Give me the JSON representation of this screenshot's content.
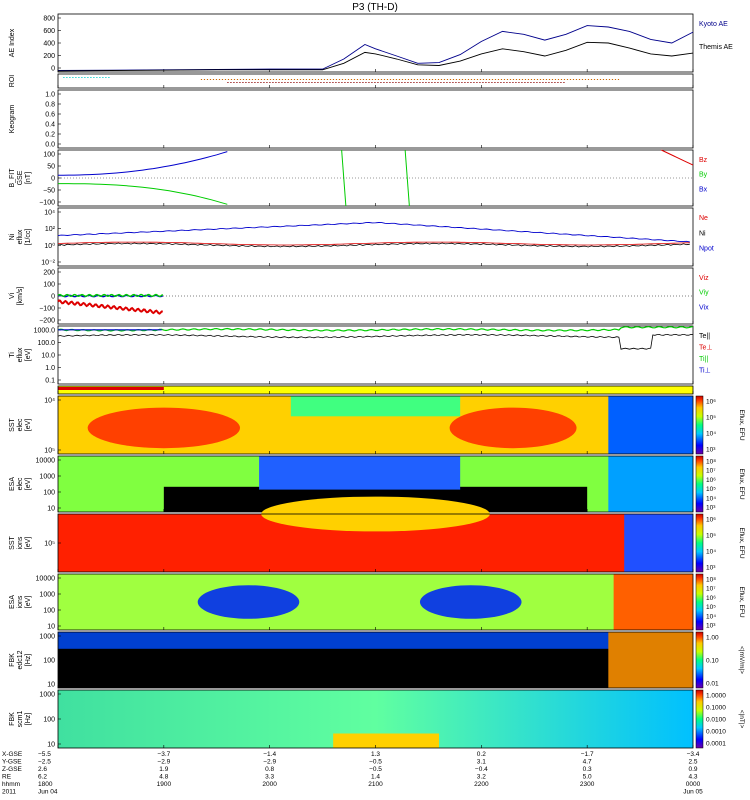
{
  "figure": {
    "title": "P3 (TH-D)"
  },
  "colors": {
    "kyoto": "#00008b",
    "themis": "#000000",
    "red": "#dd0000",
    "green": "#00cc00",
    "blue": "#0000cc",
    "cyan": "#00cccc",
    "orange": "#cc6600"
  },
  "panels": [
    {
      "id": "ae",
      "ylabel": [
        "AE Index"
      ],
      "ticks": [
        "800",
        "600",
        "400",
        "200",
        "0"
      ],
      "legend": [
        {
          "text": "Kyoto AE",
          "color": "#00008b"
        },
        {
          "text": "Themis AE",
          "color": "#000000"
        }
      ]
    },
    {
      "id": "roi",
      "ylabel": [
        "ROI"
      ],
      "ticks": [],
      "legend": []
    },
    {
      "id": "keo",
      "ylabel": [
        "Keogram"
      ],
      "ticks": [
        "1.0",
        "0.8",
        "0.6",
        "0.4",
        "0.2",
        "0.0"
      ],
      "legend": []
    },
    {
      "id": "bfit",
      "ylabel": [
        "B_FIT",
        "GSE",
        "[nT]"
      ],
      "ticks": [
        "100",
        "50",
        "0",
        "−50",
        "−100"
      ],
      "legend": [
        {
          "text": "Bz",
          "color": "#dd0000"
        },
        {
          "text": "By",
          "color": "#00cc00"
        },
        {
          "text": "Bx",
          "color": "#0000cc"
        }
      ]
    },
    {
      "id": "ni",
      "ylabel": [
        "Ni",
        "eflux",
        "[1/cc]"
      ],
      "ticks": [
        "10⁴",
        "10²",
        "10⁰",
        "10⁻²"
      ],
      "legend": [
        {
          "text": "Ne",
          "color": "#dd0000"
        },
        {
          "text": "Ni",
          "color": "#000000"
        },
        {
          "text": "Npot",
          "color": "#0000cc"
        }
      ]
    },
    {
      "id": "vi",
      "ylabel": [
        "Vi",
        "[km/s]"
      ],
      "ticks": [
        "200",
        "100",
        "0",
        "−100",
        "−200"
      ],
      "legend": [
        {
          "text": "Viz",
          "color": "#dd0000"
        },
        {
          "text": "Viy",
          "color": "#00cc00"
        },
        {
          "text": "Vix",
          "color": "#0000cc"
        }
      ]
    },
    {
      "id": "ti",
      "ylabel": [
        "Ti",
        "eflux",
        "[eV]"
      ],
      "ticks": [
        "1000.0",
        "100.0",
        "10.0",
        "1.0",
        "0.1"
      ],
      "legend": [
        {
          "text": "Te||",
          "color": "#000000"
        },
        {
          "text": "Te⊥",
          "color": "#dd0000"
        },
        {
          "text": "Ti||",
          "color": "#00cc00"
        },
        {
          "text": "Ti⊥",
          "color": "#0000cc"
        }
      ]
    },
    {
      "id": "bar",
      "ylabel": [],
      "ticks": [],
      "legend": []
    },
    {
      "id": "sst_e",
      "ylabel": [
        "SST",
        "elec",
        "[eV]"
      ],
      "ticks": [
        "10⁴",
        "10⁵"
      ],
      "legend": []
    },
    {
      "id": "esa_e",
      "ylabel": [
        "ESA",
        "elec",
        "[eV]"
      ],
      "ticks": [
        "10000",
        "1000",
        "100",
        "10"
      ],
      "legend": []
    },
    {
      "id": "sst_i",
      "ylabel": [
        "SST",
        "ions",
        "[eV]"
      ],
      "ticks": [
        "10⁵"
      ],
      "legend": []
    },
    {
      "id": "esa_i",
      "ylabel": [
        "ESA",
        "ions",
        "[eV]"
      ],
      "ticks": [
        "10000",
        "1000",
        "100",
        "10"
      ],
      "legend": []
    },
    {
      "id": "fbk1",
      "ylabel": [
        "FBK",
        "edc12",
        "[Hz]"
      ],
      "ticks": [
        "1000",
        "100",
        "10"
      ],
      "legend": []
    },
    {
      "id": "fbk2",
      "ylabel": [
        "FBK",
        "scm1",
        "[Hz]"
      ],
      "ticks": [
        "1000",
        "100",
        "10"
      ],
      "legend": []
    }
  ],
  "colorbars": [
    {
      "id": "cb1",
      "label": "Eflux, EFU",
      "ticks": [
        "10⁶",
        "10⁵",
        "10⁴",
        "10³"
      ]
    },
    {
      "id": "cb2",
      "label": "Eflux, EFU",
      "ticks": [
        "10⁸",
        "10⁷",
        "10⁶",
        "10⁵",
        "10⁴",
        "10³"
      ]
    },
    {
      "id": "cb3",
      "label": "Eflux, EFU",
      "ticks": [
        "10⁶",
        "10⁵",
        "10⁴",
        "10³"
      ]
    },
    {
      "id": "cb4",
      "label": "Eflux, EFU",
      "ticks": [
        "10⁸",
        "10⁷",
        "10⁶",
        "10⁵",
        "10⁴",
        "10³"
      ]
    },
    {
      "id": "cb5",
      "label": "<|mV/m|>",
      "ticks": [
        "1.00",
        "0.10",
        "0.01"
      ]
    },
    {
      "id": "cb6",
      "label": "<|nT|>",
      "ticks": [
        "1.0000",
        "0.1000",
        "0.0100",
        "0.0010",
        "0.0001"
      ]
    }
  ],
  "xaxis": {
    "row_labels": [
      "X-GSE",
      "Y-GSE",
      "Z-GSE",
      "RE",
      "hhmm",
      "2011"
    ],
    "columns": [
      {
        "values": [
          "−5.5",
          "−2.5",
          "2.6",
          "6.2",
          "1800",
          "Jun 04"
        ]
      },
      {
        "values": [
          "−3.7",
          "−2.9",
          "1.9",
          "4.8",
          "1900",
          ""
        ]
      },
      {
        "values": [
          "−1.4",
          "−2.9",
          "0.8",
          "3.3",
          "2000",
          ""
        ]
      },
      {
        "values": [
          "1.3",
          "−0.5",
          "−0.5",
          "1.4",
          "2100",
          ""
        ]
      },
      {
        "values": [
          "0.2",
          "3.1",
          "−0.4",
          "3.2",
          "2200",
          ""
        ]
      },
      {
        "values": [
          "−1.7",
          "4.7",
          "0.3",
          "5.0",
          "2300",
          ""
        ]
      },
      {
        "values": [
          "−3.4",
          "2.5",
          "0.9",
          "4.3",
          "0000",
          "Jun 05"
        ]
      }
    ]
  },
  "chart_data": {
    "type": "line",
    "title": "P3 (TH-D)",
    "time_ticks": [
      "1800",
      "1900",
      "2000",
      "2100",
      "2200",
      "2300",
      "0000"
    ],
    "ae_index": {
      "ylim": [
        0,
        800
      ],
      "series": [
        {
          "name": "Kyoto AE",
          "x": [
            0,
            0.5,
            1,
            1.5,
            2,
            2.5,
            2.7,
            2.9,
            3.0,
            3.2,
            3.4,
            3.6,
            3.8,
            4.0,
            4.2,
            4.4,
            4.6,
            4.8,
            5.0,
            5.2,
            5.4,
            5.6,
            5.8,
            6.0
          ],
          "y": [
            20,
            25,
            30,
            35,
            40,
            40,
            180,
            380,
            320,
            220,
            120,
            130,
            240,
            420,
            560,
            520,
            440,
            520,
            640,
            620,
            560,
            450,
            400,
            550
          ]
        },
        {
          "name": "Themis AE",
          "x": [
            0,
            0.5,
            1,
            1.5,
            2,
            2.5,
            2.7,
            2.9,
            3.0,
            3.2,
            3.4,
            3.6,
            3.8,
            4.0,
            4.2,
            4.4,
            4.6,
            4.8,
            5.0,
            5.2,
            5.4,
            5.6,
            5.8,
            6.0
          ],
          "y": [
            15,
            20,
            25,
            30,
            30,
            30,
            120,
            270,
            250,
            180,
            100,
            90,
            150,
            250,
            320,
            280,
            220,
            300,
            410,
            400,
            330,
            250,
            220,
            260
          ]
        }
      ]
    },
    "vi": {
      "ylim": [
        -250,
        250
      ]
    },
    "b_fit": {
      "ylim": [
        -100,
        100
      ]
    },
    "esa_ions_energy_ticks": [
      "10000",
      "1000",
      "100",
      "10"
    ]
  }
}
